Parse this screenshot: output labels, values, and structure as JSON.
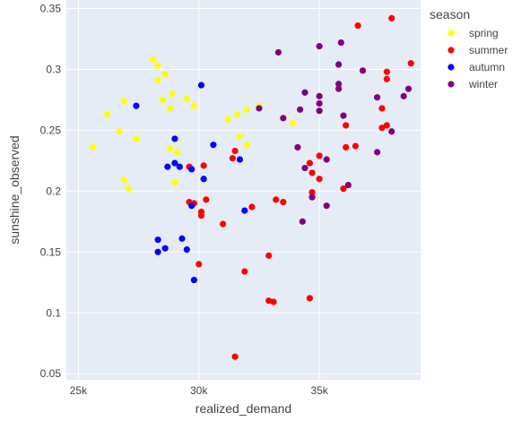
{
  "chart_data": {
    "type": "scatter",
    "xlabel": "realized_demand",
    "ylabel": "sunshine_observed",
    "xlim": [
      24500,
      39200
    ],
    "ylim": [
      0.045,
      0.357
    ],
    "x_ticks": [
      25000,
      30000,
      35000
    ],
    "x_tick_labels": [
      "25k",
      "30k",
      "35k"
    ],
    "y_ticks": [
      0.05,
      0.1,
      0.15,
      0.2,
      0.25,
      0.3,
      0.35
    ],
    "y_tick_labels": [
      "0.05",
      "0.1",
      "0.15",
      "0.2",
      "0.25",
      "0.3",
      "0.35"
    ],
    "grid": true,
    "background_color": "#e5ecf6",
    "legend_title": "season",
    "legend_position": "top-right",
    "series": [
      {
        "name": "spring",
        "color": "#ffff00",
        "points": [
          [
            25600,
            0.236
          ],
          [
            26200,
            0.263
          ],
          [
            26700,
            0.249
          ],
          [
            26900,
            0.274
          ],
          [
            26900,
            0.209
          ],
          [
            27100,
            0.202
          ],
          [
            27400,
            0.243
          ],
          [
            28100,
            0.308
          ],
          [
            28300,
            0.303
          ],
          [
            28300,
            0.291
          ],
          [
            28500,
            0.275
          ],
          [
            28600,
            0.296
          ],
          [
            28800,
            0.268
          ],
          [
            28800,
            0.235
          ],
          [
            28900,
            0.28
          ],
          [
            29000,
            0.207
          ],
          [
            29100,
            0.232
          ],
          [
            29500,
            0.276
          ],
          [
            29800,
            0.27
          ],
          [
            31200,
            0.259
          ],
          [
            31600,
            0.263
          ],
          [
            31700,
            0.245
          ],
          [
            32000,
            0.267
          ],
          [
            32000,
            0.238
          ],
          [
            32500,
            0.27
          ],
          [
            33900,
            0.256
          ]
        ]
      },
      {
        "name": "summer",
        "color": "#ff0000",
        "points": [
          [
            29600,
            0.22
          ],
          [
            29600,
            0.191
          ],
          [
            29800,
            0.19
          ],
          [
            30000,
            0.14
          ],
          [
            30100,
            0.183
          ],
          [
            30100,
            0.18
          ],
          [
            30200,
            0.221
          ],
          [
            30300,
            0.193
          ],
          [
            31000,
            0.173
          ],
          [
            31400,
            0.227
          ],
          [
            31500,
            0.233
          ],
          [
            31500,
            0.064
          ],
          [
            31900,
            0.134
          ],
          [
            32200,
            0.187
          ],
          [
            32900,
            0.147
          ],
          [
            32900,
            0.11
          ],
          [
            33100,
            0.109
          ],
          [
            33200,
            0.193
          ],
          [
            33500,
            0.191
          ],
          [
            34600,
            0.112
          ],
          [
            34600,
            0.223
          ],
          [
            34700,
            0.199
          ],
          [
            34700,
            0.215
          ],
          [
            35000,
            0.21
          ],
          [
            35000,
            0.229
          ],
          [
            36000,
            0.202
          ],
          [
            36100,
            0.254
          ],
          [
            36100,
            0.236
          ],
          [
            36500,
            0.237
          ],
          [
            36600,
            0.336
          ],
          [
            37600,
            0.268
          ],
          [
            37600,
            0.252
          ],
          [
            37800,
            0.254
          ],
          [
            37800,
            0.298
          ],
          [
            37800,
            0.292
          ],
          [
            38000,
            0.342
          ],
          [
            38800,
            0.305
          ]
        ]
      },
      {
        "name": "autumn",
        "color": "#0000ff",
        "points": [
          [
            27400,
            0.27
          ],
          [
            28300,
            0.16
          ],
          [
            28300,
            0.15
          ],
          [
            28600,
            0.153
          ],
          [
            28700,
            0.22
          ],
          [
            29000,
            0.243
          ],
          [
            29000,
            0.223
          ],
          [
            29200,
            0.22
          ],
          [
            29300,
            0.161
          ],
          [
            29500,
            0.152
          ],
          [
            29700,
            0.218
          ],
          [
            29700,
            0.188
          ],
          [
            29800,
            0.127
          ],
          [
            30100,
            0.287
          ],
          [
            30200,
            0.21
          ],
          [
            30600,
            0.238
          ],
          [
            31700,
            0.226
          ],
          [
            31900,
            0.184
          ]
        ]
      },
      {
        "name": "winter",
        "color": "#800080",
        "points": [
          [
            32500,
            0.268
          ],
          [
            33300,
            0.314
          ],
          [
            33500,
            0.26
          ],
          [
            34100,
            0.236
          ],
          [
            34200,
            0.267
          ],
          [
            34300,
            0.175
          ],
          [
            34400,
            0.281
          ],
          [
            34400,
            0.219
          ],
          [
            34700,
            0.195
          ],
          [
            35000,
            0.278
          ],
          [
            35000,
            0.272
          ],
          [
            35000,
            0.266
          ],
          [
            35000,
            0.319
          ],
          [
            35300,
            0.226
          ],
          [
            35300,
            0.188
          ],
          [
            35800,
            0.288
          ],
          [
            35800,
            0.284
          ],
          [
            35800,
            0.304
          ],
          [
            35900,
            0.322
          ],
          [
            36000,
            0.262
          ],
          [
            36200,
            0.205
          ],
          [
            36800,
            0.299
          ],
          [
            37400,
            0.277
          ],
          [
            37400,
            0.232
          ],
          [
            38000,
            0.249
          ],
          [
            38500,
            0.278
          ],
          [
            38700,
            0.284
          ]
        ]
      }
    ]
  }
}
